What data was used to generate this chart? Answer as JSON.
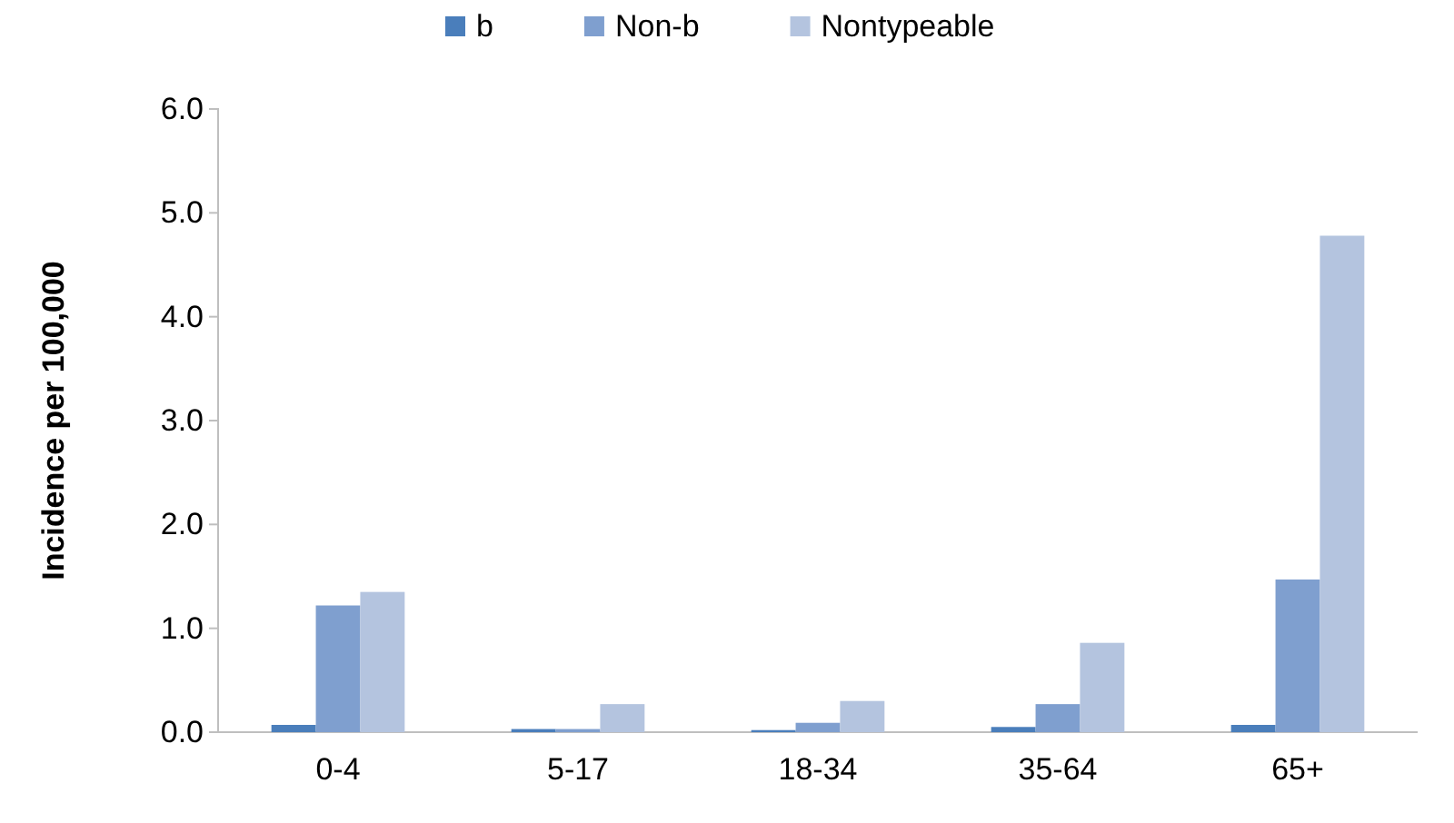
{
  "chart_data": {
    "type": "bar",
    "ylabel": "Incidence per 100,000",
    "categories": [
      "0-4",
      "5-17",
      "18-34",
      "35-64",
      "65+"
    ],
    "series": [
      {
        "name": "b",
        "color": "#4a7ebb",
        "values": [
          0.07,
          0.03,
          0.02,
          0.05,
          0.07
        ]
      },
      {
        "name": "Non-b",
        "color": "#7f9fcf",
        "values": [
          1.22,
          0.03,
          0.09,
          0.27,
          1.47
        ]
      },
      {
        "name": "Nontypeable",
        "color": "#b4c4df",
        "values": [
          1.35,
          0.27,
          0.3,
          0.86,
          4.78
        ]
      }
    ],
    "ylim": [
      0,
      6
    ],
    "yticks": [
      {
        "value": 0,
        "label": "0.0"
      },
      {
        "value": 1,
        "label": "1.0"
      },
      {
        "value": 2,
        "label": "2.0"
      },
      {
        "value": 3,
        "label": "3.0"
      },
      {
        "value": 4,
        "label": "4.0"
      },
      {
        "value": 5,
        "label": "5.0"
      },
      {
        "value": 6,
        "label": "6.0"
      }
    ],
    "legend": "top",
    "grid": false
  }
}
